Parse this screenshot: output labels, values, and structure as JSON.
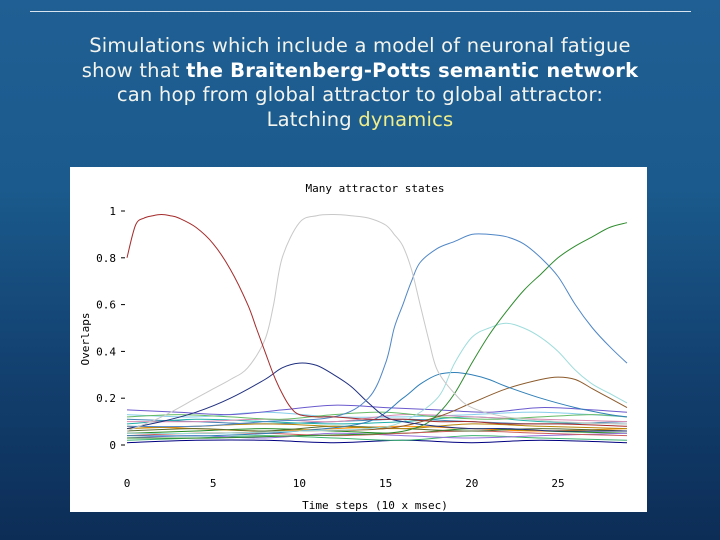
{
  "slide": {
    "line1": "Simulations which include a model of neuronal fatigue",
    "line2_prefix": "show that ",
    "line2_bold": "the Braitenberg-Potts semantic network",
    "line3": "can hop from global attractor to global attractor:",
    "line4_plain": "Latching ",
    "line4_highlight": "dynamics"
  },
  "colors": {
    "text": "#f4f4ee",
    "highlight": "#f2ef8a",
    "plot_background": "#ffffff"
  },
  "chart_data": {
    "type": "line",
    "title": "Many attractor states",
    "xlabel": "Time steps (10 x msec)",
    "ylabel": "Overlaps",
    "xlim": [
      0,
      29
    ],
    "ylim": [
      0,
      1
    ],
    "xticks": [
      0,
      5,
      10,
      15,
      20,
      25
    ],
    "yticks": [
      0,
      0.2,
      0.4,
      0.6,
      0.8,
      1
    ],
    "ytick_labels": [
      "0",
      "0.2",
      "0.4",
      "0.6",
      "0.8",
      "1"
    ],
    "grid": false,
    "legend": "none",
    "series": [
      {
        "color": "#a52a2a",
        "x": [
          0,
          0.5,
          1,
          1.5,
          2,
          2.5,
          3,
          4,
          5,
          6,
          7,
          7.5,
          8,
          8.5,
          9,
          9.5,
          10,
          11,
          12,
          14,
          16,
          18,
          20,
          22,
          25,
          29
        ],
        "y": [
          0.8,
          0.94,
          0.97,
          0.98,
          0.985,
          0.98,
          0.97,
          0.93,
          0.86,
          0.75,
          0.6,
          0.5,
          0.4,
          0.3,
          0.22,
          0.16,
          0.13,
          0.12,
          0.12,
          0.11,
          0.11,
          0.1,
          0.1,
          0.09,
          0.09,
          0.08
        ]
      },
      {
        "color": "#c8c8c8",
        "x": [
          0,
          2,
          4,
          5,
          6,
          7,
          8,
          8.5,
          9,
          10,
          11,
          12,
          13,
          14,
          15,
          15.5,
          16,
          16.5,
          17,
          17.5,
          18,
          19,
          20,
          22,
          25,
          29
        ],
        "y": [
          0.06,
          0.12,
          0.2,
          0.24,
          0.28,
          0.33,
          0.45,
          0.6,
          0.8,
          0.95,
          0.98,
          0.985,
          0.98,
          0.97,
          0.94,
          0.9,
          0.85,
          0.75,
          0.6,
          0.45,
          0.32,
          0.22,
          0.16,
          0.12,
          0.1,
          0.09
        ]
      },
      {
        "color": "#4f86c6",
        "x": [
          0,
          4,
          8,
          12,
          14,
          15,
          15.5,
          16,
          16.5,
          17,
          18,
          19,
          20,
          21,
          22,
          23,
          24,
          25,
          26,
          27,
          28,
          29
        ],
        "y": [
          0.08,
          0.08,
          0.1,
          0.12,
          0.2,
          0.35,
          0.5,
          0.6,
          0.7,
          0.78,
          0.84,
          0.87,
          0.9,
          0.9,
          0.89,
          0.86,
          0.8,
          0.72,
          0.6,
          0.5,
          0.42,
          0.35
        ]
      },
      {
        "color": "#2e8b2e",
        "x": [
          0,
          5,
          10,
          15,
          17,
          18,
          19,
          20,
          21,
          22,
          23,
          24,
          25,
          26,
          27,
          28,
          29
        ],
        "y": [
          0.03,
          0.03,
          0.04,
          0.05,
          0.08,
          0.13,
          0.22,
          0.35,
          0.47,
          0.57,
          0.66,
          0.73,
          0.8,
          0.85,
          0.89,
          0.93,
          0.95
        ]
      },
      {
        "color": "#1f2f7f",
        "x": [
          0,
          2,
          4,
          6,
          8,
          9,
          10,
          11,
          12,
          13,
          14,
          15,
          16,
          18,
          20,
          22,
          25,
          29
        ],
        "y": [
          0.07,
          0.1,
          0.14,
          0.2,
          0.28,
          0.33,
          0.35,
          0.34,
          0.3,
          0.25,
          0.18,
          0.12,
          0.1,
          0.08,
          0.07,
          0.07,
          0.06,
          0.06
        ]
      },
      {
        "color": "#9fdcdc",
        "x": [
          0,
          5,
          10,
          14,
          16,
          18,
          19,
          20,
          21,
          22,
          23,
          24,
          25,
          26,
          27,
          28,
          29
        ],
        "y": [
          0.05,
          0.05,
          0.06,
          0.07,
          0.1,
          0.2,
          0.35,
          0.46,
          0.5,
          0.52,
          0.5,
          0.46,
          0.4,
          0.32,
          0.26,
          0.22,
          0.18
        ]
      },
      {
        "color": "#2f7fb8",
        "x": [
          0,
          5,
          10,
          14,
          16,
          17,
          18,
          19,
          20,
          21,
          22,
          24,
          26,
          28,
          29
        ],
        "y": [
          0.04,
          0.04,
          0.06,
          0.1,
          0.2,
          0.26,
          0.3,
          0.31,
          0.3,
          0.28,
          0.25,
          0.2,
          0.16,
          0.13,
          0.12
        ]
      },
      {
        "color": "#8b5a2b",
        "x": [
          0,
          5,
          10,
          15,
          18,
          20,
          22,
          24,
          25,
          26,
          27,
          28,
          29
        ],
        "y": [
          0.05,
          0.05,
          0.06,
          0.07,
          0.12,
          0.18,
          0.24,
          0.28,
          0.29,
          0.28,
          0.24,
          0.2,
          0.16
        ]
      },
      {
        "color": "#6a5acd",
        "x": [
          0,
          3,
          6,
          9,
          12,
          15,
          18,
          21,
          24,
          27,
          29
        ],
        "y": [
          0.15,
          0.14,
          0.13,
          0.15,
          0.17,
          0.16,
          0.15,
          0.14,
          0.16,
          0.15,
          0.14
        ]
      },
      {
        "color": "#66bb66",
        "x": [
          0,
          3,
          6,
          9,
          12,
          15,
          18,
          21,
          24,
          27,
          29
        ],
        "y": [
          0.12,
          0.13,
          0.12,
          0.11,
          0.13,
          0.14,
          0.12,
          0.11,
          0.12,
          0.13,
          0.12
        ]
      },
      {
        "color": "#d98cb3",
        "x": [
          0,
          4,
          8,
          12,
          16,
          20,
          24,
          29
        ],
        "y": [
          0.1,
          0.1,
          0.11,
          0.1,
          0.13,
          0.12,
          0.11,
          0.1
        ]
      },
      {
        "color": "#20b2aa",
        "x": [
          0,
          4,
          8,
          12,
          16,
          20,
          24,
          29
        ],
        "y": [
          0.09,
          0.11,
          0.1,
          0.09,
          0.1,
          0.12,
          0.1,
          0.09
        ]
      },
      {
        "color": "#b8860b",
        "x": [
          0,
          4,
          8,
          12,
          16,
          20,
          24,
          29
        ],
        "y": [
          0.07,
          0.08,
          0.09,
          0.08,
          0.07,
          0.09,
          0.08,
          0.07
        ]
      },
      {
        "color": "#556b2f",
        "x": [
          0,
          4,
          8,
          12,
          16,
          20,
          24,
          29
        ],
        "y": [
          0.06,
          0.07,
          0.06,
          0.08,
          0.07,
          0.06,
          0.07,
          0.06
        ]
      },
      {
        "color": "#4682b4",
        "x": [
          0,
          4,
          8,
          12,
          16,
          20,
          24,
          29
        ],
        "y": [
          0.11,
          0.1,
          0.09,
          0.1,
          0.11,
          0.1,
          0.09,
          0.1
        ]
      },
      {
        "color": "#cd5c5c",
        "x": [
          0,
          4,
          8,
          12,
          16,
          20,
          24,
          29
        ],
        "y": [
          0.04,
          0.05,
          0.05,
          0.04,
          0.05,
          0.06,
          0.05,
          0.04
        ]
      },
      {
        "color": "#9370db",
        "x": [
          0,
          4,
          8,
          12,
          16,
          20,
          24,
          29
        ],
        "y": [
          0.03,
          0.04,
          0.03,
          0.05,
          0.04,
          0.03,
          0.04,
          0.05
        ]
      },
      {
        "color": "#3cb371",
        "x": [
          0,
          4,
          8,
          12,
          16,
          20,
          24,
          29
        ],
        "y": [
          0.02,
          0.03,
          0.04,
          0.03,
          0.02,
          0.04,
          0.03,
          0.02
        ]
      },
      {
        "color": "#000080",
        "x": [
          0,
          4,
          8,
          12,
          16,
          20,
          24,
          29
        ],
        "y": [
          0.01,
          0.02,
          0.02,
          0.01,
          0.02,
          0.01,
          0.02,
          0.01
        ]
      },
      {
        "color": "#ff8c00",
        "x": [
          0,
          4,
          8,
          12,
          16,
          20,
          24,
          29
        ],
        "y": [
          0.08,
          0.07,
          0.06,
          0.07,
          0.08,
          0.07,
          0.06,
          0.07
        ]
      },
      {
        "color": "#87ceeb",
        "x": [
          0,
          4,
          8,
          12,
          16,
          20,
          24,
          29
        ],
        "y": [
          0.13,
          0.12,
          0.14,
          0.12,
          0.12,
          0.13,
          0.14,
          0.12
        ]
      },
      {
        "color": "#228b22",
        "x": [
          0,
          4,
          8,
          12,
          16,
          20,
          24,
          29
        ],
        "y": [
          0.05,
          0.06,
          0.07,
          0.06,
          0.05,
          0.07,
          0.06,
          0.05
        ]
      }
    ]
  }
}
